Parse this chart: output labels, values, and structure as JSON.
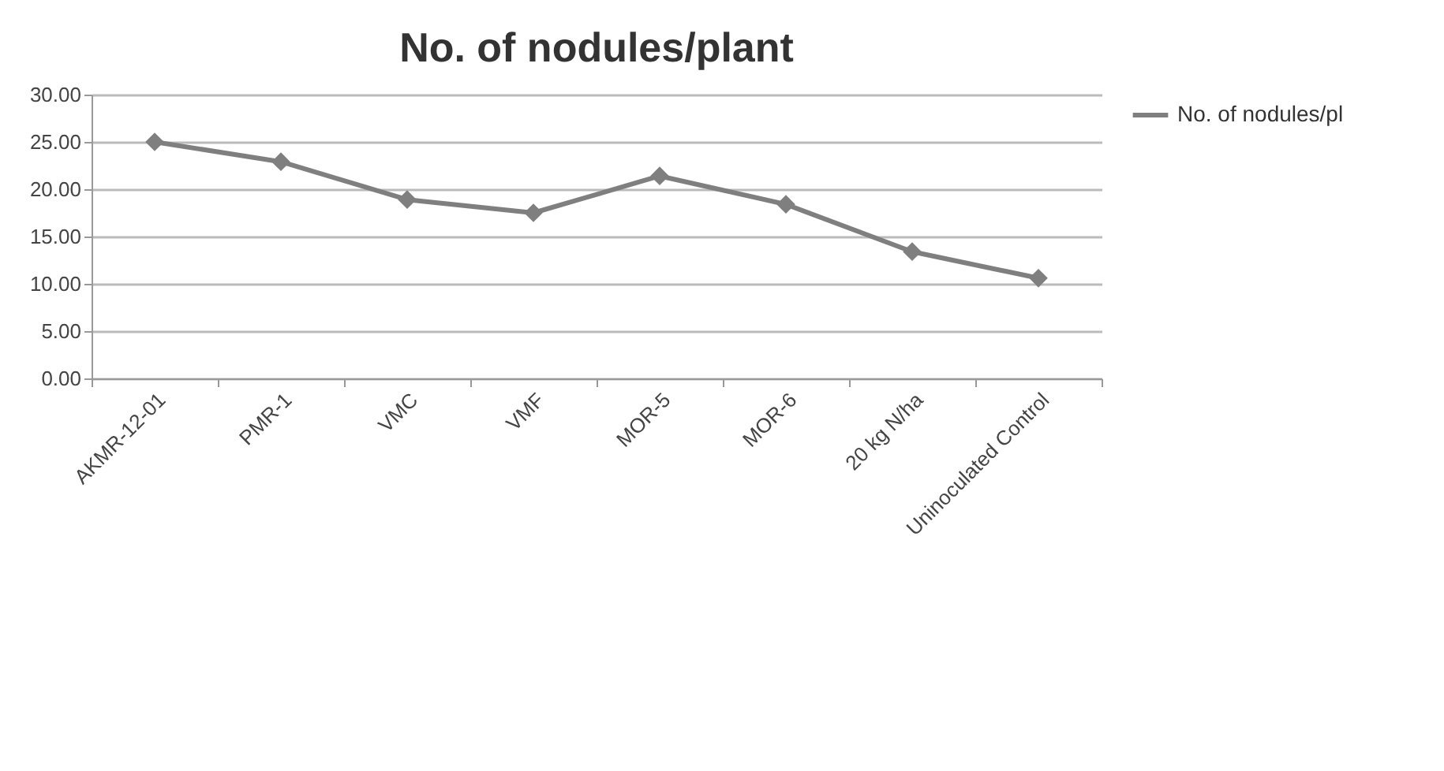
{
  "chart_data": {
    "type": "line",
    "title": "No. of nodules/plant",
    "categories": [
      "AKMR-12-01",
      "PMR-1",
      "VMC",
      "VMF",
      "MOR-5",
      "MOR-6",
      "20 kg N/ha",
      "Uninoculated Control"
    ],
    "series": [
      {
        "name": "No. of nodules/pl",
        "color": "#7f7f7f",
        "values": [
          25.0,
          22.9,
          18.9,
          17.5,
          21.4,
          18.4,
          13.4,
          10.6
        ]
      }
    ],
    "ylim": [
      0,
      30
    ],
    "yticks": [
      {
        "value": 0,
        "label": "0.00"
      },
      {
        "value": 5,
        "label": "5.00"
      },
      {
        "value": 10,
        "label": "10.00"
      },
      {
        "value": 15,
        "label": "15.00"
      },
      {
        "value": 20,
        "label": "20.00"
      },
      {
        "value": 25,
        "label": "25.00"
      },
      {
        "value": 30,
        "label": "30.00"
      }
    ],
    "grid": "y",
    "legend": "right",
    "marker": "diamond",
    "line_style": "solid"
  }
}
